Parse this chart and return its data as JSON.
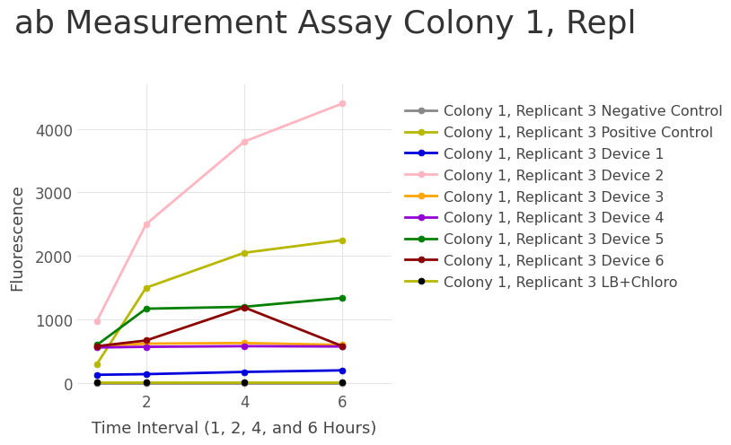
{
  "title": "ab Measurement Assay Colony 1, Repl",
  "xlabel": "Time Interval (1, 2, 4, and 6 Hours)",
  "ylabel": "Fluorescence",
  "x": [
    1,
    2,
    4,
    6
  ],
  "series": [
    {
      "label": "Colony 1, Replicant 3 Negative Control",
      "line_color": "#888888",
      "marker_color": "#888888",
      "values": [
        0,
        0,
        0,
        0
      ]
    },
    {
      "label": "Colony 1, Replicant 3 Positive Control",
      "line_color": "#b8b800",
      "marker_color": "#b8b800",
      "values": [
        300,
        1500,
        2050,
        2250
      ]
    },
    {
      "label": "Colony 1, Replicant 3 Device 1",
      "line_color": "#0000dd",
      "marker_color": "#0000dd",
      "values": [
        130,
        140,
        175,
        200
      ]
    },
    {
      "label": "Colony 1, Replicant 3 Device 2",
      "line_color": "#ffb6c1",
      "marker_color": "#ffb6c1",
      "values": [
        980,
        2500,
        3800,
        4400
      ]
    },
    {
      "label": "Colony 1, Replicant 3 Device 3",
      "line_color": "#ffa500",
      "marker_color": "#ffa500",
      "values": [
        580,
        620,
        630,
        600
      ]
    },
    {
      "label": "Colony 1, Replicant 3 Device 4",
      "line_color": "#9400d3",
      "marker_color": "#9400d3",
      "values": [
        560,
        570,
        580,
        575
      ]
    },
    {
      "label": "Colony 1, Replicant 3 Device 5",
      "line_color": "#008000",
      "marker_color": "#008000",
      "values": [
        600,
        1170,
        1200,
        1340
      ]
    },
    {
      "label": "Colony 1, Replicant 3 Device 6",
      "line_color": "#8b0000",
      "marker_color": "#8b0000",
      "values": [
        580,
        670,
        1190,
        580
      ]
    },
    {
      "label": "Colony 1, Replicant 3 LB+Chloro",
      "line_color": "#b8b800",
      "marker_color": "#000000",
      "values": [
        20,
        20,
        20,
        20
      ]
    }
  ],
  "ylim": [
    -100,
    4700
  ],
  "xlim": [
    0.6,
    7.0
  ],
  "xticks": [
    2,
    4,
    6
  ],
  "yticks": [
    0,
    1000,
    2000,
    3000,
    4000
  ],
  "bg_color": "#ffffff",
  "grid_color": "#e5e5e5",
  "title_fontsize": 26,
  "axis_label_fontsize": 13,
  "tick_fontsize": 12,
  "legend_fontsize": 11.5
}
